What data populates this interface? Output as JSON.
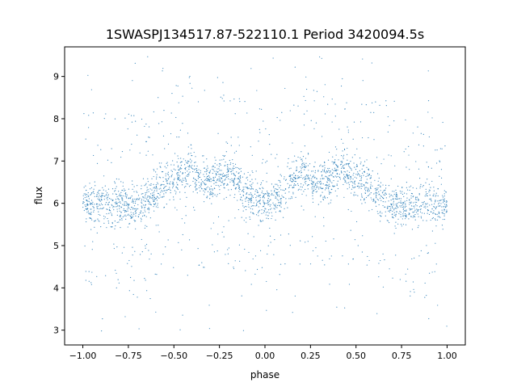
{
  "chart_data": {
    "type": "scatter",
    "title": "1SWASPJ134517.87-522110.1 Period 3420094.5s",
    "xlabel": "phase",
    "ylabel": "flux",
    "xlim": [
      -1.1,
      1.1
    ],
    "ylim": [
      2.65,
      9.7
    ],
    "xticks": [
      -1.0,
      -0.75,
      -0.5,
      -0.25,
      0.0,
      0.25,
      0.5,
      0.75,
      1.0
    ],
    "xtick_labels": [
      "−1.00",
      "−0.75",
      "−0.50",
      "−0.25",
      "0.00",
      "0.25",
      "0.50",
      "0.75",
      "1.00"
    ],
    "yticks": [
      3,
      4,
      5,
      6,
      7,
      8,
      9
    ],
    "ytick_labels": [
      "3",
      "4",
      "5",
      "6",
      "7",
      "8",
      "9"
    ],
    "grid": false,
    "legend": "none",
    "series": [
      {
        "color": "#1f77b4",
        "marker_size": "tiny",
        "phase_range": [
          -1.0,
          1.0
        ],
        "profile_phase": [
          0.0,
          0.05,
          0.1,
          0.15,
          0.2,
          0.25,
          0.3,
          0.35,
          0.4,
          0.45,
          0.5,
          0.55,
          0.6,
          0.65,
          0.7,
          0.75,
          0.8,
          0.85,
          0.9,
          0.95,
          1.0
        ],
        "profile_flux_mean": [
          6.0,
          6.1,
          6.25,
          6.5,
          6.75,
          6.6,
          6.45,
          6.6,
          6.85,
          6.75,
          6.6,
          6.45,
          6.3,
          6.05,
          5.9,
          5.95,
          6.0,
          5.95,
          6.0,
          6.0,
          6.0
        ],
        "flux_scatter_sigma": 0.35,
        "outlier_flux_range": [
          2.95,
          9.5
        ]
      }
    ]
  }
}
